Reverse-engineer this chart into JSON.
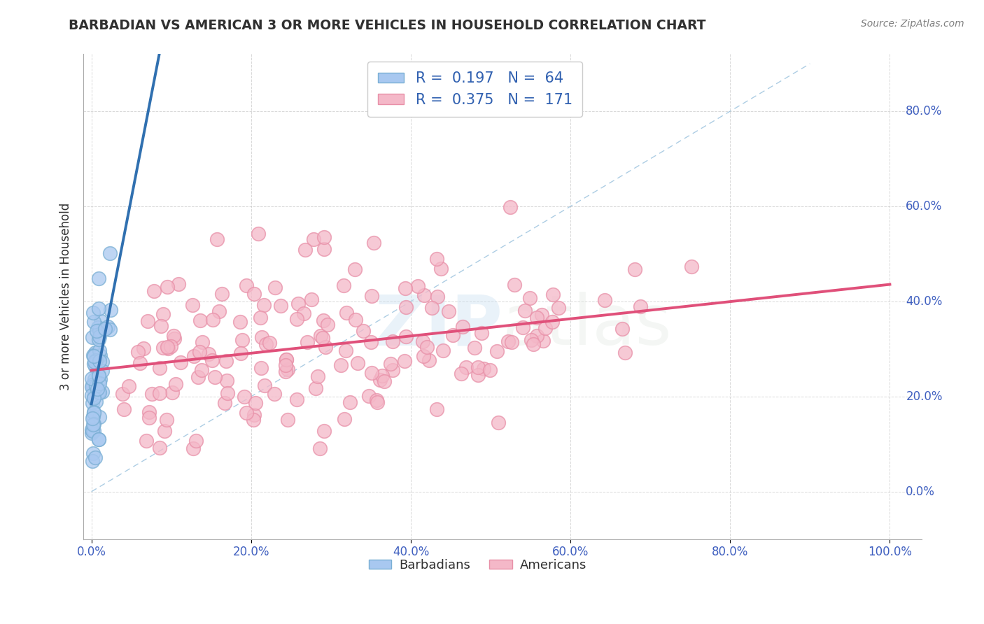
{
  "title": "BARBADIAN VS AMERICAN 3 OR MORE VEHICLES IN HOUSEHOLD CORRELATION CHART",
  "source": "Source: ZipAtlas.com",
  "ylabel_label": "3 or more Vehicles in Household",
  "barbadian_color": "#a8c8f0",
  "barbadian_edge_color": "#7aafd4",
  "american_color": "#f4b8c8",
  "american_edge_color": "#e890a8",
  "barbadian_line_color": "#3070b0",
  "american_line_color": "#e0507a",
  "diagonal_color": "#8ab8d8",
  "R_barbadian": 0.197,
  "N_barbadian": 64,
  "R_american": 0.375,
  "N_american": 171,
  "background_color": "#ffffff",
  "watermark_color": "#d8e8f0",
  "grid_color": "#c8c8c8",
  "tick_label_color": "#4060c0",
  "title_color": "#303030",
  "source_color": "#808080",
  "legend_text_color": "#3060b0"
}
